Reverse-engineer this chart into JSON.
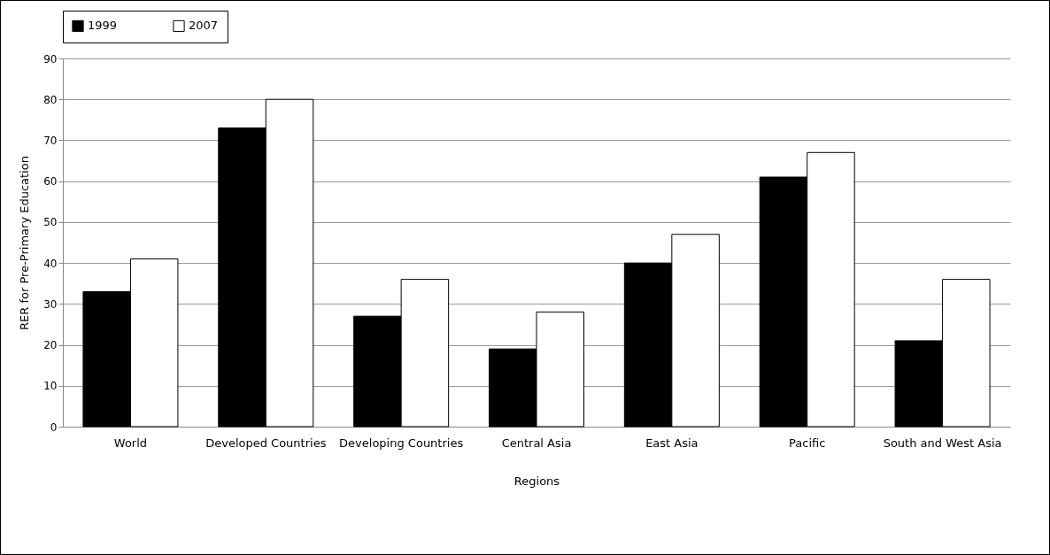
{
  "chart_data": {
    "type": "bar",
    "xlabel": "Regions",
    "ylabel": "RER for Pre-Primary Education",
    "categories": [
      "World",
      "Developed Countries",
      "Developing Countries",
      "Central Asia",
      "East Asia",
      "Pacific",
      "South and West Asia"
    ],
    "series": [
      {
        "name": "1999",
        "color": "#000000",
        "values": [
          33,
          73,
          27,
          19,
          40,
          61,
          21
        ]
      },
      {
        "name": "2007",
        "color": "#ffffff",
        "values": [
          41,
          80,
          36,
          28,
          47,
          67,
          36
        ]
      }
    ],
    "ylim": [
      0,
      90
    ],
    "yticks": [
      0,
      10,
      20,
      30,
      40,
      50,
      60,
      70,
      80,
      90
    ],
    "grid": "y",
    "legend": "top"
  }
}
